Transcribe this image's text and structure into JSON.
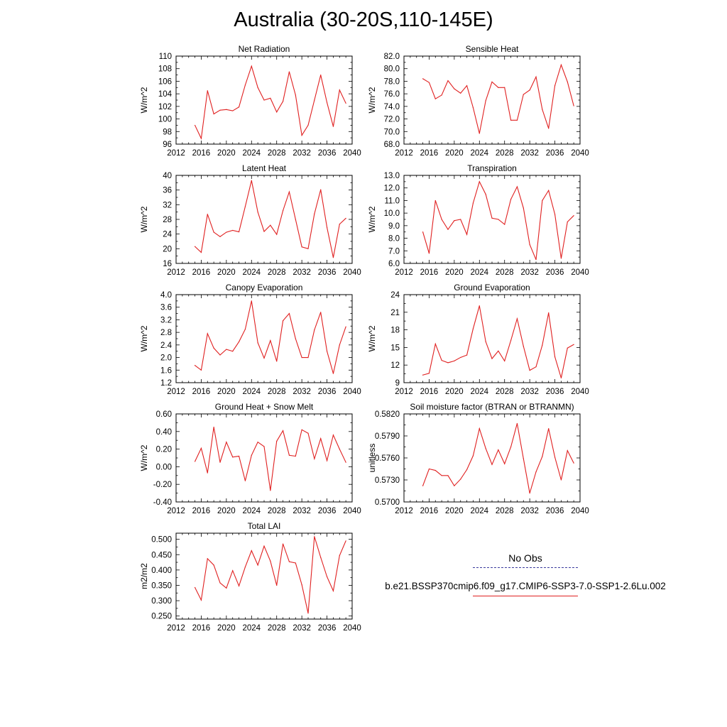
{
  "page": {
    "title": "Australia (30-20S,110-145E)"
  },
  "legend": {
    "obs_label": "No Obs",
    "case_label": "b.e21.BSSP370cmip6.f09_g17.CMIP6-SSP3-7.0-SSP1-2.6Lu.002",
    "obs_color": "#3b3b9e",
    "case_color": "#e02020"
  },
  "chart_data": [
    {
      "type": "line",
      "title": "Net Radiation",
      "ylabel": "W/m^2",
      "xlim": [
        2012,
        2040
      ],
      "xticks": [
        "2012",
        "2016",
        "2020",
        "2024",
        "2028",
        "2032",
        "2036",
        "2040"
      ],
      "ylim": [
        96,
        110
      ],
      "yticks": [
        "96",
        "98",
        "100",
        "102",
        "104",
        "106",
        "108",
        "110"
      ],
      "x": [
        2015,
        2016,
        2017,
        2018,
        2019,
        2020,
        2021,
        2022,
        2023,
        2024,
        2025,
        2026,
        2027,
        2028,
        2029,
        2030,
        2031,
        2032,
        2033,
        2034,
        2035,
        2036,
        2037,
        2038,
        2039
      ],
      "series": [
        {
          "color": "#e02020",
          "values": [
            99.0,
            96.9,
            104.5,
            100.8,
            101.4,
            101.5,
            101.3,
            101.9,
            105.4,
            108.4,
            105.0,
            103.0,
            103.3,
            101.1,
            102.8,
            107.5,
            103.8,
            97.4,
            99.0,
            103.0,
            107.0,
            102.6,
            98.8,
            104.6,
            102.5
          ]
        }
      ]
    },
    {
      "type": "line",
      "title": "Sensible Heat",
      "ylabel": "W/m^2",
      "xlim": [
        2012,
        2040
      ],
      "xticks": [
        "2012",
        "2016",
        "2020",
        "2024",
        "2028",
        "2032",
        "2036",
        "2040"
      ],
      "ylim": [
        68,
        82
      ],
      "yticks": [
        "68.0",
        "70.0",
        "72.0",
        "74.0",
        "76.0",
        "78.0",
        "80.0",
        "82.0"
      ],
      "x": [
        2015,
        2016,
        2017,
        2018,
        2019,
        2020,
        2021,
        2022,
        2023,
        2024,
        2025,
        2026,
        2027,
        2028,
        2029,
        2030,
        2031,
        2032,
        2033,
        2034,
        2035,
        2036,
        2037,
        2038,
        2039
      ],
      "series": [
        {
          "color": "#e02020",
          "values": [
            78.4,
            77.8,
            75.2,
            75.8,
            78.1,
            76.8,
            76.1,
            77.3,
            73.8,
            69.7,
            74.9,
            77.9,
            77.0,
            77.0,
            71.8,
            71.8,
            75.9,
            76.6,
            78.7,
            73.5,
            70.5,
            77.3,
            80.6,
            77.9,
            74.1
          ]
        }
      ]
    },
    {
      "type": "line",
      "title": "Latent Heat",
      "ylabel": "W/m^2",
      "xlim": [
        2012,
        2040
      ],
      "xticks": [
        "2012",
        "2016",
        "2020",
        "2024",
        "2028",
        "2032",
        "2036",
        "2040"
      ],
      "ylim": [
        16,
        40
      ],
      "yticks": [
        "16",
        "20",
        "24",
        "28",
        "32",
        "36",
        "40"
      ],
      "x": [
        2015,
        2016,
        2017,
        2018,
        2019,
        2020,
        2021,
        2022,
        2023,
        2024,
        2025,
        2026,
        2027,
        2028,
        2029,
        2030,
        2031,
        2032,
        2033,
        2034,
        2035,
        2036,
        2037,
        2038,
        2039
      ],
      "series": [
        {
          "color": "#e02020",
          "values": [
            20.6,
            19.0,
            29.4,
            24.5,
            23.3,
            24.5,
            25.0,
            24.6,
            31.5,
            38.6,
            30.0,
            24.7,
            26.4,
            23.9,
            30.4,
            35.5,
            28.0,
            20.5,
            20.0,
            29.5,
            36.1,
            25.8,
            17.6,
            26.7,
            28.3
          ]
        }
      ]
    },
    {
      "type": "line",
      "title": "Transpiration",
      "ylabel": "W/m^2",
      "xlim": [
        2012,
        2040
      ],
      "xticks": [
        "2012",
        "2016",
        "2020",
        "2024",
        "2028",
        "2032",
        "2036",
        "2040"
      ],
      "ylim": [
        6,
        13
      ],
      "yticks": [
        "6.0",
        "7.0",
        "8.0",
        "9.0",
        "10.0",
        "11.0",
        "12.0",
        "13.0"
      ],
      "x": [
        2015,
        2016,
        2017,
        2018,
        2019,
        2020,
        2021,
        2022,
        2023,
        2024,
        2025,
        2026,
        2027,
        2028,
        2029,
        2030,
        2031,
        2032,
        2033,
        2034,
        2035,
        2036,
        2037,
        2038,
        2039
      ],
      "series": [
        {
          "color": "#e02020",
          "values": [
            8.5,
            6.8,
            11.0,
            9.5,
            8.7,
            9.4,
            9.5,
            8.3,
            10.8,
            12.5,
            11.5,
            9.6,
            9.5,
            9.1,
            11.1,
            12.1,
            10.4,
            7.5,
            6.3,
            11.0,
            11.8,
            9.9,
            6.4,
            9.3,
            9.8
          ]
        }
      ]
    },
    {
      "type": "line",
      "title": "Canopy Evaporation",
      "ylabel": "W/m^2",
      "xlim": [
        2012,
        2040
      ],
      "xticks": [
        "2012",
        "2016",
        "2020",
        "2024",
        "2028",
        "2032",
        "2036",
        "2040"
      ],
      "ylim": [
        1.2,
        4.0
      ],
      "yticks": [
        "1.2",
        "1.6",
        "2.0",
        "2.4",
        "2.8",
        "3.2",
        "3.6",
        "4.0"
      ],
      "x": [
        2015,
        2016,
        2017,
        2018,
        2019,
        2020,
        2021,
        2022,
        2023,
        2024,
        2025,
        2026,
        2027,
        2028,
        2029,
        2030,
        2031,
        2032,
        2033,
        2034,
        2035,
        2036,
        2037,
        2038,
        2039
      ],
      "series": [
        {
          "color": "#e02020",
          "values": [
            1.75,
            1.6,
            2.76,
            2.3,
            2.08,
            2.26,
            2.2,
            2.5,
            2.9,
            3.8,
            2.47,
            1.98,
            2.54,
            1.88,
            3.17,
            3.4,
            2.6,
            2.0,
            2.0,
            2.88,
            3.44,
            2.2,
            1.49,
            2.4,
            2.98
          ]
        }
      ]
    },
    {
      "type": "line",
      "title": "Ground Evaporation",
      "ylabel": "W/m^2",
      "xlim": [
        2012,
        2040
      ],
      "xticks": [
        "2012",
        "2016",
        "2020",
        "2024",
        "2028",
        "2032",
        "2036",
        "2040"
      ],
      "ylim": [
        9,
        24
      ],
      "yticks": [
        "9",
        "12",
        "15",
        "18",
        "21",
        "24"
      ],
      "x": [
        2015,
        2016,
        2017,
        2018,
        2019,
        2020,
        2021,
        2022,
        2023,
        2024,
        2025,
        2026,
        2027,
        2028,
        2029,
        2030,
        2031,
        2032,
        2033,
        2034,
        2035,
        2036,
        2037,
        2038,
        2039
      ],
      "series": [
        {
          "color": "#e02020",
          "values": [
            10.3,
            10.6,
            15.6,
            12.8,
            12.4,
            12.7,
            13.3,
            13.7,
            18.2,
            22.1,
            16.0,
            13.1,
            14.4,
            12.7,
            16.2,
            19.9,
            15.2,
            11.1,
            11.7,
            15.4,
            20.9,
            13.4,
            9.8,
            14.9,
            15.5
          ]
        }
      ]
    },
    {
      "type": "line",
      "title": "Ground Heat + Snow Melt",
      "ylabel": "W/m^2",
      "xlim": [
        2012,
        2040
      ],
      "xticks": [
        "2012",
        "2016",
        "2020",
        "2024",
        "2028",
        "2032",
        "2036",
        "2040"
      ],
      "ylim": [
        -0.4,
        0.6
      ],
      "yticks": [
        "-0.40",
        "-0.20",
        "0.00",
        "0.20",
        "0.40",
        "0.60"
      ],
      "x": [
        2015,
        2016,
        2017,
        2018,
        2019,
        2020,
        2021,
        2022,
        2023,
        2024,
        2025,
        2026,
        2027,
        2028,
        2029,
        2030,
        2031,
        2032,
        2033,
        2034,
        2035,
        2036,
        2037,
        2038,
        2039
      ],
      "series": [
        {
          "color": "#e02020",
          "values": [
            0.06,
            0.21,
            -0.07,
            0.45,
            0.05,
            0.28,
            0.11,
            0.12,
            -0.16,
            0.13,
            0.28,
            0.23,
            -0.27,
            0.29,
            0.41,
            0.13,
            0.12,
            0.42,
            0.38,
            0.09,
            0.32,
            0.07,
            0.36,
            0.2,
            0.05
          ]
        }
      ]
    },
    {
      "type": "line",
      "title": "Soil moisture factor (BTRAN or BTRANMN)",
      "ylabel": "unitless",
      "xlim": [
        2012,
        2040
      ],
      "xticks": [
        "2012",
        "2016",
        "2020",
        "2024",
        "2028",
        "2032",
        "2036",
        "2040"
      ],
      "ylim": [
        0.57,
        0.582
      ],
      "yticks": [
        "0.5700",
        "0.5730",
        "0.5760",
        "0.5790",
        "0.5820"
      ],
      "x": [
        2015,
        2016,
        2017,
        2018,
        2019,
        2020,
        2021,
        2022,
        2023,
        2024,
        2025,
        2026,
        2027,
        2028,
        2029,
        2030,
        2031,
        2032,
        2033,
        2034,
        2035,
        2036,
        2037,
        2038,
        2039
      ],
      "series": [
        {
          "color": "#e02020",
          "values": [
            0.5722,
            0.5745,
            0.5743,
            0.5736,
            0.5736,
            0.5722,
            0.5731,
            0.5744,
            0.5763,
            0.58,
            0.5773,
            0.5751,
            0.5771,
            0.5752,
            0.5775,
            0.5807,
            0.5759,
            0.5712,
            0.5741,
            0.5762,
            0.58,
            0.5761,
            0.573,
            0.577,
            0.5753
          ]
        }
      ]
    },
    {
      "type": "line",
      "title": "Total LAI",
      "ylabel": "m2/m2",
      "xlim": [
        2012,
        2040
      ],
      "xticks": [
        "2012",
        "2016",
        "2020",
        "2024",
        "2028",
        "2032",
        "2036",
        "2040"
      ],
      "ylim": [
        0.24,
        0.52
      ],
      "yticks": [
        "0.250",
        "0.300",
        "0.350",
        "0.400",
        "0.450",
        "0.500"
      ],
      "x": [
        2015,
        2016,
        2017,
        2018,
        2019,
        2020,
        2021,
        2022,
        2023,
        2024,
        2025,
        2026,
        2027,
        2028,
        2029,
        2030,
        2031,
        2032,
        2033,
        2034,
        2035,
        2036,
        2037,
        2038,
        2039
      ],
      "series": [
        {
          "color": "#e02020",
          "values": [
            0.343,
            0.302,
            0.437,
            0.416,
            0.358,
            0.341,
            0.398,
            0.348,
            0.41,
            0.463,
            0.416,
            0.478,
            0.429,
            0.35,
            0.485,
            0.427,
            0.423,
            0.352,
            0.259,
            0.509,
            0.441,
            0.378,
            0.332,
            0.447,
            0.495
          ]
        }
      ]
    }
  ]
}
